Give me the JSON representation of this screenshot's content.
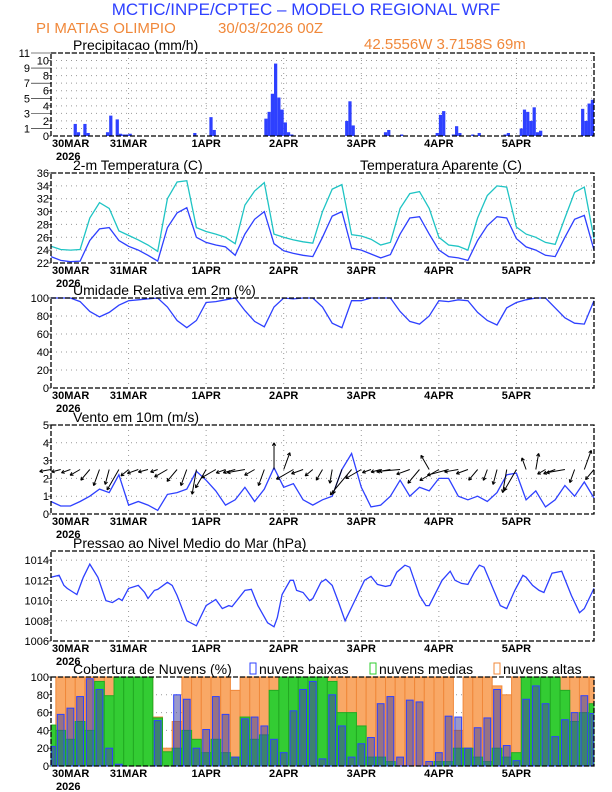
{
  "header": {
    "title": "MCTIC/INPE/CPTEC – MODELO REGIONAL WRF",
    "station": "PI MATIAS OLIMPIO",
    "run": "30/03/2026 00Z",
    "location": "42.5556W 3.7158S 69m"
  },
  "time_axis": {
    "labels": [
      "30MAR",
      "31MAR",
      "1APR",
      "2APR",
      "3APR",
      "4APR",
      "5APR"
    ],
    "year": "2026",
    "hours_total": 168,
    "step_hours": 3
  },
  "colors": {
    "blue": "#2e40ff",
    "cyan": "#1fc4c4",
    "orange": "#f0883a",
    "green": "#2ccc2c",
    "frame": "#000000"
  },
  "chart_data": [
    {
      "type": "bar",
      "title": "Precipitacao (mm/h)",
      "ylim": [
        0,
        11
      ],
      "yticks": [
        "0",
        "1",
        "2",
        "3",
        "4",
        "5",
        "6",
        "7",
        "8",
        "9",
        "10",
        "11"
      ],
      "bars": [
        [
          7,
          1.6
        ],
        [
          8,
          0.5
        ],
        [
          10,
          1.6
        ],
        [
          11,
          0.4
        ],
        [
          17,
          0.5
        ],
        [
          18,
          2.7
        ],
        [
          20,
          2.2
        ],
        [
          21,
          0.3
        ],
        [
          22,
          0.2
        ],
        [
          23,
          0.2
        ],
        [
          24,
          0.3
        ],
        [
          44,
          0.4
        ],
        [
          49,
          2.5
        ],
        [
          50,
          0.8
        ],
        [
          66,
          2.3
        ],
        [
          67,
          3.2
        ],
        [
          68,
          5.6
        ],
        [
          69,
          9.6
        ],
        [
          70,
          5.1
        ],
        [
          71,
          3.5
        ],
        [
          72,
          1.8
        ],
        [
          73,
          0.5
        ],
        [
          74,
          0.2
        ],
        [
          91,
          2.0
        ],
        [
          92,
          4.6
        ],
        [
          93,
          1.4
        ],
        [
          103,
          0.5
        ],
        [
          104,
          0.8
        ],
        [
          108,
          0.2
        ],
        [
          119,
          0.4
        ],
        [
          120,
          2.8
        ],
        [
          121,
          3.3
        ],
        [
          124,
          0.2
        ],
        [
          125,
          1.3
        ],
        [
          126,
          0.4
        ],
        [
          130,
          0.2
        ],
        [
          132,
          0.4
        ],
        [
          140,
          0.2
        ],
        [
          141,
          0.4
        ],
        [
          145,
          1.0
        ],
        [
          146,
          3.5
        ],
        [
          147,
          3.2
        ],
        [
          148,
          2.0
        ],
        [
          149,
          3.8
        ],
        [
          150,
          0.5
        ],
        [
          151,
          0.7
        ],
        [
          164,
          3.6
        ],
        [
          165,
          2.0
        ],
        [
          166,
          4.3
        ],
        [
          167,
          4.8
        ]
      ]
    },
    {
      "type": "line",
      "ylim": [
        22,
        36
      ],
      "yticks": [
        "22",
        "24",
        "26",
        "28",
        "30",
        "32",
        "34",
        "36"
      ],
      "series": [
        {
          "name": "2-m Temperatura (C)",
          "values": [
            23.0,
            22.4,
            22.2,
            22.3,
            25.5,
            27.3,
            27.5,
            25.5,
            24.6,
            24.0,
            23.2,
            22.3,
            27.5,
            29.8,
            30.6,
            26.0,
            25.2,
            24.8,
            24.5,
            23.2,
            26.5,
            28.8,
            30.0,
            25.0,
            23.9,
            23.5,
            23.2,
            23.0,
            26.0,
            29.3,
            30.0,
            24.3,
            24.0,
            23.4,
            22.8,
            23.3,
            26.5,
            29.0,
            29.2,
            26.5,
            24.0,
            23.0,
            22.8,
            22.4,
            25.5,
            27.8,
            29.2,
            29.0,
            25.8,
            24.5,
            24.0,
            23.2,
            23.0,
            26.0,
            28.8,
            29.4,
            24.0
          ]
        },
        {
          "name": "Temperatura Aparente (C)",
          "values": [
            24.6,
            24.1,
            24.0,
            24.1,
            29.0,
            31.4,
            30.5,
            27.0,
            26.3,
            25.6,
            24.8,
            23.8,
            32.0,
            34.6,
            34.8,
            27.5,
            26.9,
            26.5,
            26.0,
            25.0,
            31.0,
            33.2,
            34.5,
            26.5,
            26.0,
            25.6,
            25.3,
            25.1,
            30.0,
            33.5,
            34.2,
            26.4,
            26.2,
            25.7,
            24.8,
            25.2,
            30.5,
            32.8,
            33.1,
            30.5,
            26.0,
            24.8,
            24.6,
            24.0,
            29.0,
            32.5,
            34.0,
            33.8,
            27.6,
            26.5,
            26.0,
            25.2,
            24.9,
            29.0,
            33.0,
            33.8,
            25.8
          ]
        }
      ]
    },
    {
      "type": "line",
      "title": "Umidade Relativa em 2m (%)",
      "ylim": [
        0,
        100
      ],
      "yticks": [
        "0",
        "20",
        "40",
        "60",
        "80",
        "100"
      ],
      "values": [
        100,
        100,
        100,
        96,
        85,
        79,
        84,
        92,
        97,
        98,
        99,
        100,
        90,
        75,
        67,
        75,
        95,
        96,
        98,
        100,
        86,
        74,
        68,
        90,
        100,
        99,
        100,
        100,
        90,
        72,
        67,
        97,
        97,
        100,
        100,
        100,
        85,
        74,
        71,
        80,
        97,
        96,
        98,
        97,
        84,
        75,
        70,
        89,
        95,
        98,
        100,
        100,
        89,
        78,
        72,
        71,
        97
      ]
    },
    {
      "type": "line",
      "title": "Vento em 10m (m/s)",
      "ylim": [
        0,
        5
      ],
      "yticks": [
        "0",
        "1",
        "2",
        "3",
        "4",
        "5"
      ],
      "speed": [
        0.7,
        0.45,
        0.45,
        0.7,
        1.0,
        1.4,
        1.2,
        2.2,
        0.5,
        0.7,
        0.5,
        0.2,
        1.1,
        1.2,
        1.4,
        2.4,
        1.9,
        1.3,
        0.5,
        0.8,
        1.5,
        0.7,
        1.4,
        2.6,
        1.5,
        1.7,
        0.8,
        0.5,
        0.8,
        1.0,
        2.5,
        3.4,
        1.5,
        0.4,
        0.5,
        1.0,
        1.9,
        1.0,
        1.5,
        1.3,
        2.0,
        2.0,
        1.0,
        0.8,
        1.0,
        0.7,
        1.2,
        2.2,
        2.3,
        0.8,
        1.3,
        0.4,
        0.8,
        1.6,
        1.0,
        1.8,
        0.9
      ],
      "direction_deg": [
        80,
        75,
        70,
        60,
        40,
        20,
        15,
        30,
        50,
        70,
        75,
        70,
        60,
        40,
        20,
        10,
        30,
        60,
        70,
        75,
        80,
        60,
        20,
        180,
        200,
        60,
        70,
        50,
        30,
        10,
        20,
        40,
        60,
        70,
        75,
        80,
        85,
        70,
        40,
        150,
        60,
        75,
        80,
        70,
        40,
        20,
        15,
        10,
        30,
        160,
        190,
        60,
        70,
        80,
        20,
        200,
        40
      ]
    },
    {
      "type": "line",
      "title": "Pressao ao Nivel Medio do Mar (hPa)",
      "ylim": [
        1006,
        1014.9
      ],
      "yticks": [
        "1006",
        "1008",
        "1010",
        "1012",
        "1014"
      ],
      "points": [
        [
          0,
          1012.3
        ],
        [
          2.5,
          1012.5
        ],
        [
          4,
          1011.5
        ],
        [
          5,
          1011.2
        ],
        [
          7,
          1010.8
        ],
        [
          8,
          1010.6
        ],
        [
          10,
          1012.3
        ],
        [
          12,
          1013.6
        ],
        [
          14.5,
          1012.3
        ],
        [
          17,
          1010.0
        ],
        [
          19,
          1009.8
        ],
        [
          21,
          1010.2
        ],
        [
          22,
          1010.0
        ],
        [
          24,
          1011.2
        ],
        [
          27,
          1011.5
        ],
        [
          29,
          1010.8
        ],
        [
          30,
          1010.2
        ],
        [
          32,
          1011.0
        ],
        [
          33,
          1011.1
        ],
        [
          36,
          1011.8
        ],
        [
          37.5,
          1011.5
        ],
        [
          39,
          1010.5
        ],
        [
          42,
          1008.0
        ],
        [
          45,
          1007.5
        ],
        [
          48,
          1009.5
        ],
        [
          51,
          1010.1
        ],
        [
          53,
          1009.2
        ],
        [
          55,
          1009.5
        ],
        [
          56,
          1009.4
        ],
        [
          60,
          1011.0
        ],
        [
          62,
          1011.1
        ],
        [
          64,
          1009.5
        ],
        [
          67,
          1007.8
        ],
        [
          69,
          1007.4
        ],
        [
          70,
          1008.3
        ],
        [
          71.5,
          1010.6
        ],
        [
          74,
          1012.0
        ],
        [
          75,
          1012.0
        ],
        [
          76,
          1011.0
        ],
        [
          78,
          1010.8
        ],
        [
          80,
          1010.0
        ],
        [
          81,
          1010.2
        ],
        [
          83.5,
          1011.8
        ],
        [
          85,
          1012.1
        ],
        [
          87,
          1011.5
        ],
        [
          89,
          1009.8
        ],
        [
          91,
          1008.0
        ],
        [
          94,
          1010.0
        ],
        [
          97,
          1012.0
        ],
        [
          99,
          1012.4
        ],
        [
          101,
          1011.6
        ],
        [
          103.5,
          1011.4
        ],
        [
          105,
          1011.5
        ],
        [
          107,
          1012.8
        ],
        [
          109.5,
          1013.5
        ],
        [
          111,
          1013.3
        ],
        [
          114,
          1010.5
        ],
        [
          116,
          1009.5
        ],
        [
          117,
          1009.5
        ],
        [
          121,
          1012.0
        ],
        [
          123.5,
          1012.9
        ],
        [
          125,
          1012.0
        ],
        [
          127,
          1011.7
        ],
        [
          129,
          1011.6
        ],
        [
          131,
          1012.8
        ],
        [
          132.5,
          1013.5
        ],
        [
          134,
          1013.3
        ],
        [
          137,
          1011.0
        ],
        [
          139,
          1009.5
        ],
        [
          141,
          1009.2
        ],
        [
          143.5,
          1011.0
        ],
        [
          146,
          1012.5
        ],
        [
          147,
          1012.3
        ],
        [
          149,
          1011.5
        ],
        [
          151,
          1011.0
        ],
        [
          152.5,
          1010.8
        ],
        [
          155,
          1012.7
        ],
        [
          158,
          1012.9
        ],
        [
          161,
          1010.5
        ],
        [
          163.5,
          1008.8
        ],
        [
          165,
          1009.2
        ],
        [
          168,
          1011.2
        ]
      ]
    },
    {
      "type": "bar",
      "title": "Cobertura de Nuvens (%)",
      "ylim": [
        0,
        100
      ],
      "yticks": [
        "0",
        "20",
        "40",
        "60",
        "80",
        "100"
      ],
      "series": [
        {
          "name": "nuvens altas",
          "values": [
            0,
            100,
            100,
            100,
            100,
            100,
            100,
            100,
            100,
            100,
            100,
            55,
            20,
            50,
            100,
            100,
            100,
            100,
            100,
            85,
            100,
            100,
            100,
            100,
            100,
            100,
            100,
            100,
            100,
            100,
            100,
            100,
            100,
            100,
            100,
            100,
            100,
            100,
            100,
            100,
            100,
            100,
            40,
            100,
            100,
            100,
            90,
            80,
            100,
            100,
            100,
            100,
            100,
            100,
            100,
            100,
            100
          ]
        },
        {
          "name": "nuvens medias",
          "values": [
            46,
            40,
            30,
            50,
            40,
            95,
            79,
            100,
            100,
            100,
            100,
            54,
            16,
            20,
            40,
            30,
            15,
            30,
            15,
            10,
            55,
            30,
            35,
            85,
            100,
            100,
            100,
            100,
            100,
            95,
            60,
            60,
            45,
            10,
            10,
            5,
            0,
            0,
            0,
            0,
            5,
            5,
            20,
            20,
            10,
            5,
            20,
            10,
            15,
            100,
            100,
            100,
            100,
            85,
            50,
            60,
            70
          ]
        },
        {
          "name": "nuvens baixas",
          "values": [
            22,
            58,
            65,
            78,
            98,
            86,
            20,
            2,
            0,
            0,
            0,
            51,
            0,
            80,
            75,
            20,
            41,
            78,
            58,
            10,
            53,
            55,
            45,
            30,
            15,
            62,
            86,
            95,
            8,
            80,
            45,
            10,
            25,
            32,
            70,
            78,
            10,
            74,
            72,
            5,
            15,
            56,
            55,
            20,
            43,
            54,
            86,
            23,
            6,
            75,
            90,
            70,
            33,
            52,
            60,
            79,
            59
          ]
        }
      ]
    }
  ]
}
